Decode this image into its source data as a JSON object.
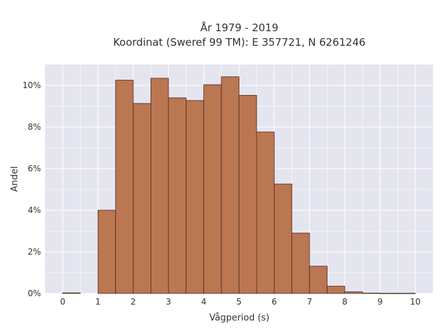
{
  "chart_data": {
    "type": "bar",
    "title": "År 1979 - 2019",
    "subtitle": "Koordinat (Sweref 99 TM): E 357721, N 6261246",
    "xlabel": "Vågperiod (s)",
    "ylabel": "Andel",
    "xlim": [
      -0.5,
      10.5
    ],
    "ylim": [
      0,
      0.11
    ],
    "x_ticks": [
      0,
      1,
      2,
      3,
      4,
      5,
      6,
      7,
      8,
      9,
      10
    ],
    "x_tick_labels": [
      "0",
      "1",
      "2",
      "3",
      "4",
      "5",
      "6",
      "7",
      "8",
      "9",
      "10"
    ],
    "y_ticks": [
      0,
      0.02,
      0.04,
      0.06,
      0.08,
      0.1
    ],
    "y_tick_labels": [
      "0%",
      "2%",
      "4%",
      "6%",
      "8%",
      "10%"
    ],
    "grid": true,
    "bar_width": 0.5,
    "bin_starts": [
      0,
      0.5,
      1,
      1.5,
      2,
      2.5,
      3,
      3.5,
      4,
      4.5,
      5,
      5.5,
      6,
      6.5,
      7,
      7.5,
      8,
      8.5,
      9,
      9.5
    ],
    "values": [
      0.0003,
      0,
      0.04,
      0.1025,
      0.0913,
      0.1034,
      0.094,
      0.0927,
      0.1003,
      0.1041,
      0.0952,
      0.0776,
      0.0526,
      0.029,
      0.0131,
      0.0035,
      0.0008,
      0.0002,
      0.0001,
      0.0001
    ],
    "colors": {
      "bar_fill": "#bb7652",
      "bar_edge": "#4a2e1f",
      "plot_bg": "#e5e5f0",
      "grid": "#ffffff"
    }
  }
}
